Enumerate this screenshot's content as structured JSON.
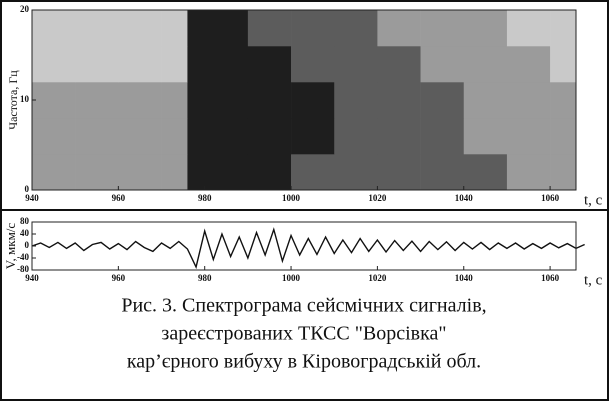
{
  "chart_data": [
    {
      "type": "heatmap",
      "y_label": "Частота, Гц",
      "x_label": "t, c",
      "bins": [
        940,
        950,
        960,
        970,
        976,
        990,
        1000,
        1010,
        1020,
        1030,
        1040,
        1050,
        1060,
        1066
      ],
      "y_bins": [
        0,
        4,
        8,
        12,
        16,
        20
      ],
      "z": [
        [
          1,
          1,
          1,
          1,
          3,
          3,
          2,
          2,
          2,
          2,
          2,
          1,
          1
        ],
        [
          1,
          1,
          1,
          1,
          3,
          3,
          3,
          2,
          2,
          2,
          1,
          1,
          1
        ],
        [
          1,
          1,
          1,
          1,
          3,
          3,
          3,
          2,
          2,
          2,
          1,
          1,
          1
        ],
        [
          0,
          0,
          0,
          0,
          3,
          3,
          2,
          2,
          2,
          1,
          1,
          1,
          0
        ],
        [
          0,
          0,
          0,
          0,
          3,
          2,
          2,
          2,
          1,
          1,
          1,
          0,
          0
        ]
      ],
      "colors": [
        "#c9c9c9",
        "#9b9b9b",
        "#5c5c5c",
        "#1e1e1e"
      ],
      "xlim": [
        940,
        1066
      ],
      "xticks": [
        940,
        960,
        980,
        1000,
        1020,
        1040,
        1060
      ],
      "ylim": [
        0,
        20
      ],
      "yticks": [
        0,
        10,
        20
      ]
    },
    {
      "type": "line",
      "y_label": "V, мкм/с",
      "x_label": "t, c",
      "color": "#111111",
      "x": [
        940,
        942,
        944,
        946,
        948,
        950,
        952,
        954,
        956,
        958,
        960,
        962,
        964,
        966,
        968,
        970,
        972,
        974,
        976,
        978,
        980,
        982,
        984,
        986,
        988,
        990,
        992,
        994,
        996,
        998,
        1000,
        1002,
        1004,
        1006,
        1008,
        1010,
        1012,
        1014,
        1016,
        1018,
        1020,
        1022,
        1024,
        1026,
        1028,
        1030,
        1032,
        1034,
        1036,
        1038,
        1040,
        1042,
        1044,
        1046,
        1048,
        1050,
        1052,
        1054,
        1056,
        1058,
        1060,
        1062,
        1064,
        1066,
        1068
      ],
      "values": [
        0,
        10,
        -5,
        12,
        -8,
        10,
        -15,
        5,
        12,
        -10,
        8,
        -12,
        15,
        -5,
        -18,
        10,
        -8,
        15,
        -10,
        -70,
        50,
        -45,
        40,
        -35,
        30,
        -40,
        45,
        -30,
        55,
        -50,
        35,
        -30,
        25,
        -28,
        30,
        -25,
        20,
        -22,
        25,
        -18,
        20,
        -20,
        18,
        -15,
        16,
        -18,
        15,
        -12,
        14,
        -15,
        12,
        -10,
        12,
        -12,
        10,
        -8,
        10,
        -10,
        8,
        -8,
        10,
        -6,
        8,
        -8,
        5
      ],
      "xlim": [
        940,
        1066
      ],
      "xticks": [
        940,
        960,
        980,
        1000,
        1020,
        1040,
        1060
      ],
      "ylim": [
        -80,
        80
      ],
      "yticks": [
        -80,
        -40,
        0,
        40,
        80
      ]
    }
  ],
  "caption": [
    "Рис. 3. Спектрограма сейсмічних сигналів,",
    "зареєстрованих ТКСС \"Ворсівка\"",
    "кар’єрного вибуху в Кіровоградській обл."
  ]
}
